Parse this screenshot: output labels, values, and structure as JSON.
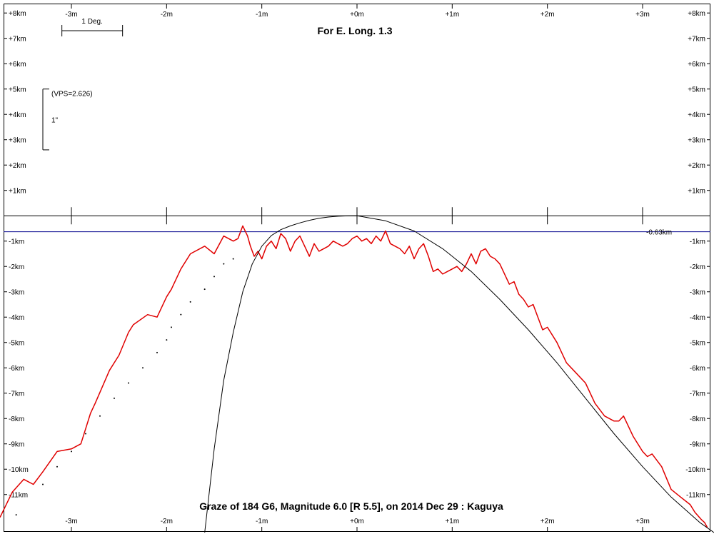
{
  "chart_data": {
    "type": "line",
    "title": "For E. Long. 1.3",
    "subtitle": "Graze of  184 G6,  Magnitude 6.0 [R 5.5],  on 2014 Dec 29  :  Kaguya",
    "xlim": [
      -3.75,
      3.75
    ],
    "ylim": [
      -12.5,
      8.4
    ],
    "x_ticks": [
      -3,
      -2,
      -1,
      0,
      1,
      2,
      3
    ],
    "x_tick_labels": [
      "-3m",
      "-2m",
      "-1m",
      "+0m",
      "+1m",
      "+2m",
      "+3m"
    ],
    "y_ticks": [
      8,
      7,
      6,
      5,
      4,
      3,
      2,
      1,
      -1,
      -2,
      -3,
      -4,
      -5,
      -6,
      -7,
      -8,
      -9,
      -10,
      -11
    ],
    "y_tick_labels": [
      "+8km",
      "+7km",
      "+6km",
      "+5km",
      "+4km",
      "+3km",
      "+2km",
      "+1km",
      "-1km",
      "-2km",
      "-3km",
      "-4km",
      "-5km",
      "-6km",
      "-7km",
      "-8km",
      "-9km",
      "-10km",
      "-11km"
    ],
    "scale_bar_label": "1 Deg.",
    "scale_bar_deg": 1,
    "vps_label": "(VPS=2.626)",
    "arcsec_label": "1\"",
    "arcsec_bar_km": [
      2.6,
      5.0
    ],
    "reference_line": {
      "y": -0.63,
      "label": "-0.63km",
      "color": "#00008b"
    },
    "colors": {
      "profile": "#e00000",
      "limb": "#000000",
      "dots": "#000000",
      "axis": "#000000"
    },
    "series": [
      {
        "kind": "profile",
        "x": [
          -3.75,
          -3.62,
          -3.5,
          -3.4,
          -3.3,
          -3.15,
          -3.0,
          -2.9,
          -2.8,
          -2.75,
          -2.6,
          -2.5,
          -2.4,
          -2.35,
          -2.2,
          -2.1,
          -2.0,
          -1.95,
          -1.85,
          -1.75,
          -1.6,
          -1.5,
          -1.4,
          -1.3,
          -1.25,
          -1.2,
          -1.15,
          -1.12,
          -1.08,
          -1.04,
          -1.0,
          -0.95,
          -0.9,
          -0.85,
          -0.8,
          -0.75,
          -0.7,
          -0.65,
          -0.6,
          -0.55,
          -0.5,
          -0.45,
          -0.4,
          -0.35,
          -0.3,
          -0.25,
          -0.2,
          -0.15,
          -0.1,
          -0.05,
          0.0,
          0.05,
          0.1,
          0.15,
          0.2,
          0.25,
          0.3,
          0.35,
          0.4,
          0.45,
          0.5,
          0.55,
          0.6,
          0.65,
          0.7,
          0.75,
          0.8,
          0.85,
          0.9,
          0.95,
          1.0,
          1.05,
          1.1,
          1.15,
          1.2,
          1.25,
          1.3,
          1.35,
          1.4,
          1.45,
          1.5,
          1.55,
          1.6,
          1.65,
          1.7,
          1.75,
          1.8,
          1.85,
          1.9,
          1.95,
          2.0,
          2.1,
          2.2,
          2.3,
          2.4,
          2.5,
          2.6,
          2.7,
          2.75,
          2.8,
          2.9,
          3.0,
          3.05,
          3.1,
          3.2,
          3.3,
          3.4,
          3.5,
          3.55,
          3.62,
          3.65,
          3.68
        ],
        "y": [
          -11.9,
          -10.9,
          -10.4,
          -10.6,
          -10.1,
          -9.3,
          -9.2,
          -9.0,
          -7.8,
          -7.4,
          -6.1,
          -5.5,
          -4.6,
          -4.3,
          -3.9,
          -4.0,
          -3.2,
          -2.9,
          -2.1,
          -1.5,
          -1.2,
          -1.5,
          -0.8,
          -1.0,
          -0.9,
          -0.4,
          -0.8,
          -1.2,
          -1.6,
          -1.4,
          -1.7,
          -1.2,
          -1.0,
          -1.3,
          -0.7,
          -0.9,
          -1.4,
          -1.0,
          -0.8,
          -1.2,
          -1.6,
          -1.1,
          -1.4,
          -1.3,
          -1.2,
          -1.0,
          -1.1,
          -1.2,
          -1.1,
          -0.9,
          -0.8,
          -1.0,
          -0.9,
          -1.1,
          -0.8,
          -1.0,
          -0.6,
          -1.1,
          -1.2,
          -1.3,
          -1.5,
          -1.2,
          -1.7,
          -1.3,
          -1.1,
          -1.6,
          -2.2,
          -2.1,
          -2.3,
          -2.2,
          -2.1,
          -2.0,
          -2.2,
          -1.9,
          -1.5,
          -1.9,
          -1.4,
          -1.3,
          -1.6,
          -1.7,
          -1.9,
          -2.3,
          -2.7,
          -2.6,
          -3.1,
          -3.3,
          -3.6,
          -3.5,
          -4.0,
          -4.5,
          -4.4,
          -5.0,
          -5.8,
          -6.2,
          -6.6,
          -7.4,
          -7.9,
          -8.1,
          -8.1,
          -7.9,
          -8.7,
          -9.3,
          -9.5,
          -9.4,
          -9.9,
          -10.8,
          -11.1,
          -11.4,
          -11.7,
          -12.0,
          -12.1,
          -12.3
        ]
      },
      {
        "kind": "limb",
        "x": [
          -1.6,
          -1.5,
          -1.4,
          -1.3,
          -1.2,
          -1.1,
          -1.0,
          -0.9,
          -0.8,
          -0.7,
          -0.6,
          -0.5,
          -0.4,
          -0.3,
          -0.2,
          -0.1,
          0.0,
          0.3,
          0.6,
          0.9,
          1.2,
          1.5,
          1.8,
          2.1,
          2.4,
          2.7,
          3.0,
          3.3,
          3.6,
          3.75
        ],
        "y": [
          -12.5,
          -9.2,
          -6.5,
          -4.6,
          -3.0,
          -1.9,
          -1.2,
          -0.78,
          -0.55,
          -0.4,
          -0.28,
          -0.18,
          -0.1,
          -0.05,
          -0.02,
          -0.005,
          0.0,
          -0.2,
          -0.6,
          -1.3,
          -2.2,
          -3.3,
          -4.5,
          -5.8,
          -7.2,
          -8.6,
          -9.9,
          -11.1,
          -12.1,
          -12.5
        ]
      },
      {
        "kind": "dots",
        "x": [
          -3.58,
          -3.3,
          -3.15,
          -3.0,
          -2.85,
          -2.7,
          -2.55,
          -2.4,
          -2.25,
          -2.1,
          -2.0,
          -1.95,
          -1.85,
          -1.75,
          -1.6,
          -1.5,
          -1.4,
          -1.3
        ],
        "y": [
          -11.8,
          -10.6,
          -9.9,
          -9.3,
          -8.6,
          -7.9,
          -7.2,
          -6.6,
          -6.0,
          -5.4,
          -4.9,
          -4.4,
          -3.9,
          -3.4,
          -2.9,
          -2.4,
          -1.9,
          -1.7
        ]
      }
    ]
  }
}
